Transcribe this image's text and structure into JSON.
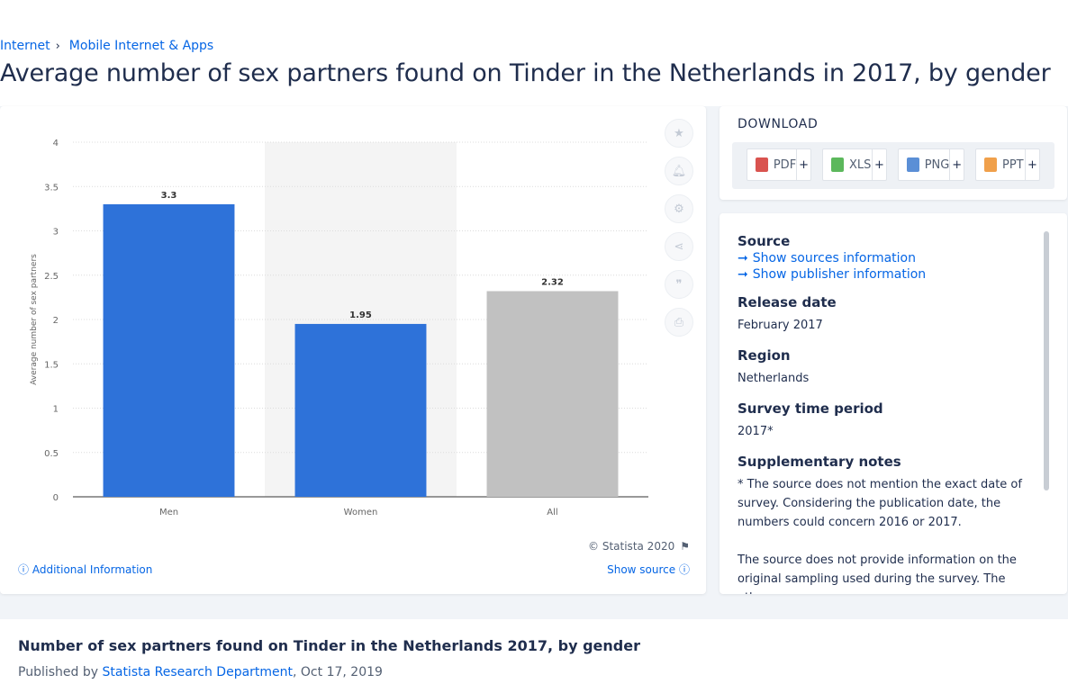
{
  "breadcrumb": {
    "items": [
      "Internet",
      "Mobile Internet & Apps"
    ],
    "separator": "›"
  },
  "page_title": "Average number of sex partners found on Tinder in the Netherlands in 2017, by gender",
  "chart_data": {
    "type": "bar",
    "categories": [
      "Men",
      "Women",
      "All"
    ],
    "values": [
      3.3,
      1.95,
      2.32
    ],
    "value_labels": [
      "3.3",
      "1.95",
      "2.32"
    ],
    "bar_colors": [
      "#2e72d9",
      "#2e72d9",
      "#c1c1c1"
    ],
    "highlight_band_category": "Women",
    "title": "",
    "xlabel": "",
    "ylabel": "Average number of sex partners",
    "ylim": [
      0,
      4
    ],
    "yticks": [
      0,
      0.5,
      1,
      1.5,
      2,
      2.5,
      3,
      3.5,
      4
    ],
    "ytick_labels": [
      "0",
      "0.5",
      "1",
      "1.5",
      "2",
      "2.5",
      "3",
      "3.5",
      "4"
    ],
    "grid": true,
    "legend": "none"
  },
  "chart_footer": {
    "copyright": "© Statista 2020",
    "additional_info": "Additional Information",
    "show_source": "Show source"
  },
  "tools": [
    "star-icon",
    "bell-icon",
    "gear-icon",
    "share-icon",
    "quote-icon",
    "print-icon"
  ],
  "download": {
    "title": "DOWNLOAD",
    "buttons": [
      {
        "label": "PDF",
        "color": "#d9534f"
      },
      {
        "label": "XLS",
        "color": "#5cb85c"
      },
      {
        "label": "PNG",
        "color": "#5b8fd6"
      },
      {
        "label": "PPT",
        "color": "#f0a04b"
      }
    ],
    "plus": "+"
  },
  "info": {
    "source_heading": "Source",
    "show_sources": "Show sources information",
    "show_publisher": "Show publisher information",
    "release_heading": "Release date",
    "release_value": "February 2017",
    "region_heading": "Region",
    "region_value": "Netherlands",
    "period_heading": "Survey time period",
    "period_value": "2017*",
    "notes_heading": "Supplementary notes",
    "notes_value_1": "* The source does not mention the exact date of survey. Considering the publication date, the numbers could concern 2016 or 2017.",
    "notes_value_2": "The source does not provide information on the original sampling used during the survey. The oth"
  },
  "bottom": {
    "title": "Number of sex partners found on Tinder in the Netherlands 2017, by gender",
    "published_prefix": "Published by",
    "publisher": "Statista Research Department",
    "date": ", Oct 17, 2019"
  },
  "colors": {
    "accent": "#0666e5",
    "text": "#1f2d4d",
    "bar_blue": "#2e72d9",
    "bar_grey": "#c1c1c1"
  }
}
